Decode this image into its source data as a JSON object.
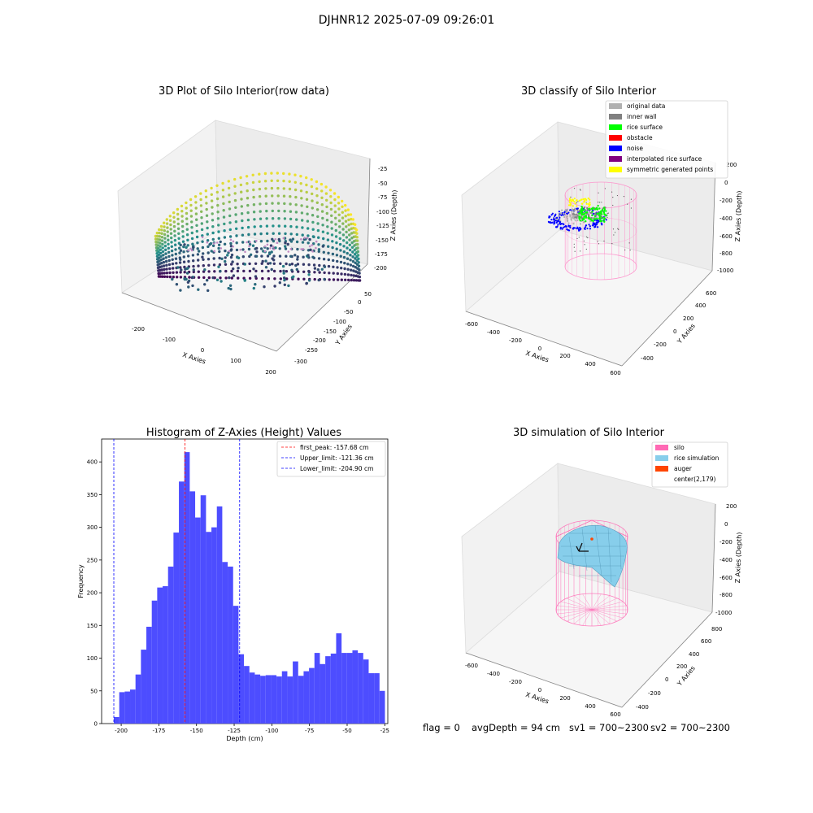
{
  "figure": {
    "suptitle": "DJHNR12 2025-07-09 09:26:01",
    "status": {
      "flag": "flag = 0",
      "avg_depth": "avgDepth = 94 cm",
      "sv1": "sv1 = 700~2300",
      "sv2": "sv2 = 700~2300"
    }
  },
  "chart_data": [
    {
      "type": "scatter",
      "projection": "3d",
      "title": "3D Plot of Silo Interior(row data)",
      "xlabel": "X Axies",
      "ylabel": "Y Axies",
      "zlabel": "Z Axies (Depth)",
      "x_ticks": [
        -200,
        -100,
        0,
        100,
        200
      ],
      "y_ticks": [
        50,
        0,
        -50,
        -100,
        -150,
        -200,
        -250,
        -300
      ],
      "z_ticks": [
        -25,
        -50,
        -75,
        -100,
        -125,
        -150,
        -175,
        -200
      ],
      "colormap": "viridis",
      "colors": {
        "low": "#440154",
        "mid": "#21918c",
        "high": "#fde725"
      }
    },
    {
      "type": "scatter",
      "projection": "3d",
      "title": "3D classify of Silo Interior",
      "xlabel": "X Axies",
      "ylabel": "Y Axies",
      "zlabel": "Z Axies (Depth)",
      "x_ticks": [
        -600,
        -400,
        -200,
        0,
        200,
        400,
        600
      ],
      "y_ticks": [
        600,
        400,
        200,
        0,
        -200,
        -400
      ],
      "z_ticks": [
        200,
        0,
        -200,
        -400,
        -600,
        -800,
        -1000
      ],
      "legend_position": "top-right",
      "legend": [
        {
          "label": "original data",
          "color": "#b0b0b0"
        },
        {
          "label": "inner wall",
          "color": "#808080"
        },
        {
          "label": "rice surface",
          "color": "#00ff00"
        },
        {
          "label": "obstacle",
          "color": "#ff0000"
        },
        {
          "label": "noise",
          "color": "#0000ff"
        },
        {
          "label": "interpolated rice surface",
          "color": "#800080"
        },
        {
          "label": "symmetric generated points",
          "color": "#ffff00"
        }
      ],
      "silo_color": "#ff88c8"
    },
    {
      "type": "bar",
      "title": "Histogram of Z-Axies (Height) Values",
      "xlabel": "Depth (cm)",
      "ylabel": "Frequency",
      "xlim": [
        -213,
        -23
      ],
      "ylim": [
        0,
        435
      ],
      "x_ticks": [
        -200,
        -175,
        -150,
        -125,
        -100,
        -75,
        -50,
        -25
      ],
      "y_ticks": [
        0,
        50,
        100,
        150,
        200,
        250,
        300,
        350,
        400
      ],
      "bin_start": -204.9,
      "bin_width": 3.6,
      "values": [
        10,
        48,
        49,
        52,
        75,
        113,
        148,
        188,
        208,
        210,
        240,
        292,
        370,
        415,
        355,
        315,
        349,
        293,
        300,
        332,
        247,
        240,
        180,
        106,
        88,
        78,
        75,
        73,
        74,
        74,
        72,
        80,
        72,
        95,
        73,
        80,
        85,
        108,
        91,
        103,
        107,
        138,
        108,
        108,
        112,
        108,
        98,
        77,
        77,
        50
      ],
      "bar_color": "#4d4dff",
      "lines": [
        {
          "label": "first_peak: -157.68 cm",
          "x": -157.68,
          "color": "#ff0000"
        },
        {
          "label": "Upper_limit: -121.36 cm",
          "x": -121.36,
          "color": "#0000ff"
        },
        {
          "label": "Lower_limit: -204.90 cm",
          "x": -204.9,
          "color": "#0000ff"
        }
      ],
      "legend_position": "top-right"
    },
    {
      "type": "surface",
      "projection": "3d",
      "title": "3D simulation of Silo Interior",
      "xlabel": "X Axies",
      "ylabel": "Y Axies",
      "zlabel": "Z Axies (Depth)",
      "x_ticks": [
        -600,
        -400,
        -200,
        0,
        200,
        400,
        600
      ],
      "y_ticks": [
        800,
        600,
        400,
        200,
        0,
        -200,
        -400
      ],
      "z_ticks": [
        200,
        0,
        -200,
        -400,
        -600,
        -800,
        -1000
      ],
      "legend_position": "top-right",
      "legend": [
        {
          "label": "silo",
          "color": "#ff69b4"
        },
        {
          "label": "rice simulation",
          "color": "#87ceeb"
        },
        {
          "label": "auger",
          "color": "#ff4500"
        },
        {
          "label": "center(2,179)",
          "color": ""
        }
      ]
    }
  ]
}
